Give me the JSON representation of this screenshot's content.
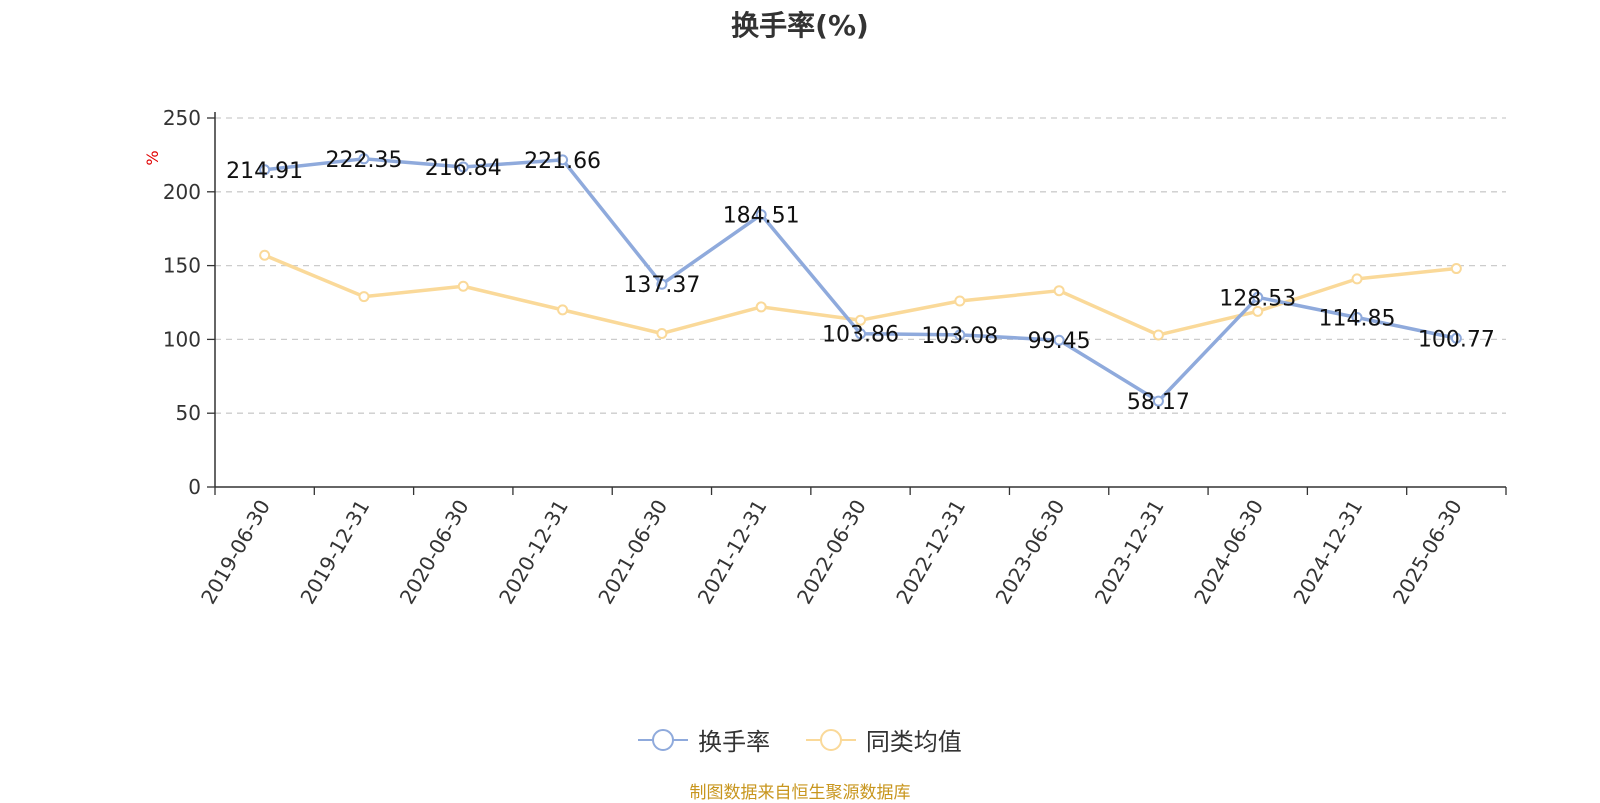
{
  "chart_data": {
    "type": "line",
    "title": "换手率(%)",
    "ylabel": "%",
    "xlabel": "",
    "ylim": [
      0,
      250
    ],
    "yticks": [
      0,
      50,
      100,
      150,
      200,
      250
    ],
    "grid": true,
    "legend_position": "bottom",
    "categories": [
      "2019-06-30",
      "2019-12-31",
      "2020-06-30",
      "2020-12-31",
      "2021-06-30",
      "2021-12-31",
      "2022-06-30",
      "2022-12-31",
      "2023-06-30",
      "2023-12-31",
      "2024-06-30",
      "2024-12-31",
      "2025-06-30"
    ],
    "series": [
      {
        "name": "换手率",
        "color": "#8faadc",
        "values": [
          214.91,
          222.35,
          216.84,
          221.66,
          137.37,
          184.51,
          103.86,
          103.08,
          99.45,
          58.17,
          128.53,
          114.85,
          100.77
        ],
        "labels": [
          "214.91",
          "222.35",
          "216.84",
          "221.66",
          "137.37",
          "184.51",
          "103.86",
          "103.08",
          "99.45",
          "58.17",
          "128.53",
          "114.85",
          "100.77"
        ]
      },
      {
        "name": "同类均值",
        "color": "#fad999",
        "values": [
          157,
          129,
          136,
          120,
          104,
          122,
          113,
          126,
          133,
          103,
          119,
          141,
          148
        ]
      }
    ]
  },
  "source_note": "制图数据来自恒生聚源数据库",
  "colors": {
    "axis": "#333333",
    "grid": "#cccccc",
    "ylabel": "#e00000",
    "source": "#c8961e"
  }
}
